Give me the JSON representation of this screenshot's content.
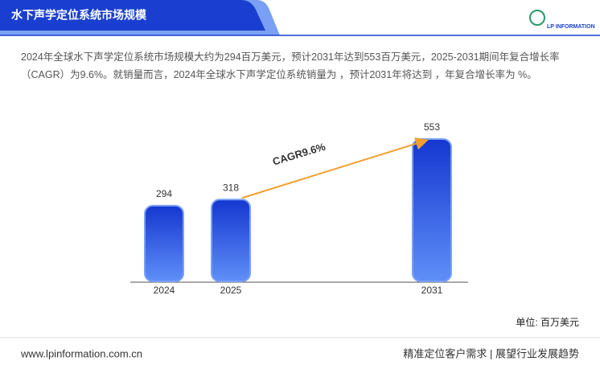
{
  "header": {
    "title": "水下声学定位系统市场规模",
    "logo": "LP INFORMATION"
  },
  "description": "2024年全球水下声学定位系统市场规模大约为294百万美元，预计2031年达到553百万美元，2025-2031期间年复合增长率（CAGR）为9.6%。就销量而言，2024年全球水下声学定位系统销量为 ，预计2031年将达到 ，年复合增长率为 %。",
  "chart_data": {
    "type": "bar",
    "categories": [
      "2024",
      "2025",
      "2031"
    ],
    "values": [
      294,
      318,
      553
    ],
    "color": "#2f5be0",
    "annotation": "CAGR9.6%",
    "unit": "单位: 百万美元"
  },
  "footer": {
    "website": "www.lpinformation.com.cn",
    "slogan": "精准定位客户需求 | 展望行业发展趋势"
  }
}
